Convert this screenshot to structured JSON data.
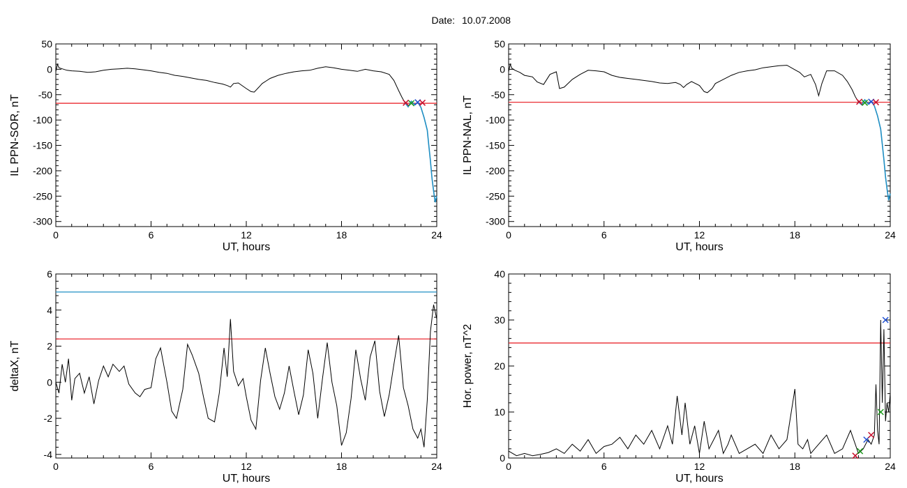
{
  "figure": {
    "date_label": "Date:",
    "date_value": "10.07.2008"
  },
  "colors": {
    "trace": "#000000",
    "threshold_red": "#e8151b",
    "threshold_blue": "#1f8fc4",
    "mark_red": "#c8102e",
    "mark_green": "#1a9a1a",
    "mark_blue": "#1f4fd0"
  },
  "chart_data": [
    {
      "id": "ppn-sor",
      "type": "line",
      "xlabel": "UT, hours",
      "ylabel": "IL PPN-SOR, nT",
      "xlim": [
        0,
        24
      ],
      "ylim": [
        -310,
        50
      ],
      "xticks": [
        0,
        6,
        12,
        18,
        24
      ],
      "yticks": [
        50,
        0,
        -50,
        -100,
        -150,
        -200,
        -250,
        -300
      ],
      "threshold": {
        "value": -67,
        "color": "red"
      },
      "series": [
        {
          "x": [
            0,
            0.1,
            0.2,
            0.4,
            0.7,
            1,
            1.5,
            2,
            2.5,
            3,
            3.5,
            4,
            4.5,
            5,
            5.5,
            6,
            6.5,
            7,
            7.5,
            8,
            8.5,
            9,
            9.5,
            10,
            10.5,
            10.8,
            11,
            11.2,
            11.5,
            12,
            12.3,
            12.5,
            12.8,
            13,
            13.5,
            14,
            14.5,
            15,
            15.5,
            16,
            16.5,
            17,
            17.5,
            18,
            18.5,
            19,
            19.5,
            20,
            20.5,
            21,
            21.3,
            21.6,
            21.8,
            22,
            22.2,
            22.4,
            22.6,
            22.8,
            23,
            23.2,
            23.4,
            23.5,
            23.6,
            23.7,
            23.8,
            23.9,
            24
          ],
          "y": [
            -5,
            10,
            3,
            1,
            -2,
            -3,
            -4,
            -6,
            -5,
            -2,
            0,
            1,
            2,
            1,
            -1,
            -3,
            -6,
            -8,
            -12,
            -14,
            -17,
            -20,
            -22,
            -26,
            -29,
            -32,
            -35,
            -28,
            -27,
            -38,
            -44,
            -45,
            -35,
            -28,
            -18,
            -12,
            -8,
            -5,
            -3,
            -2,
            2,
            5,
            3,
            0,
            -2,
            -4,
            0,
            -3,
            -5,
            -10,
            -22,
            -42,
            -55,
            -66,
            -74,
            -63,
            -70,
            -65,
            -75,
            -95,
            -120,
            -150,
            -180,
            -215,
            -240,
            -262,
            -250
          ]
        }
      ],
      "markers": {
        "x": [
          22.05,
          22.4,
          22.8,
          23.1
        ],
        "y": [
          -66,
          -67,
          -65,
          -66
        ]
      }
    },
    {
      "id": "ppn-nal",
      "type": "line",
      "xlabel": "UT, hours",
      "ylabel": "IL PPN-NAL, nT",
      "xlim": [
        0,
        24
      ],
      "ylim": [
        -310,
        50
      ],
      "xticks": [
        0,
        6,
        12,
        18,
        24
      ],
      "yticks": [
        50,
        0,
        -50,
        -100,
        -150,
        -200,
        -250,
        -300
      ],
      "threshold": {
        "value": -65,
        "color": "red"
      },
      "series": [
        {
          "x": [
            0,
            0.1,
            0.2,
            0.4,
            0.7,
            1,
            1.5,
            1.8,
            2.2,
            2.6,
            3,
            3.2,
            3.5,
            4,
            4.5,
            5,
            5.5,
            6,
            6.5,
            7,
            7.5,
            8,
            8.5,
            9,
            9.5,
            10,
            10.5,
            10.8,
            11,
            11.2,
            11.5,
            12,
            12.3,
            12.5,
            12.8,
            13,
            13.5,
            14,
            14.5,
            15,
            15.5,
            16,
            16.5,
            17,
            17.5,
            18,
            18.3,
            18.6,
            19,
            19.3,
            19.5,
            19.7,
            20,
            20.5,
            21,
            21.3,
            21.6,
            21.8,
            22,
            22.2,
            22.4,
            22.6,
            22.8,
            23,
            23.2,
            23.4,
            23.5,
            23.6,
            23.7,
            23.8,
            23.9,
            24
          ],
          "y": [
            -5,
            10,
            2,
            -2,
            -6,
            -12,
            -15,
            -25,
            -30,
            -10,
            -5,
            -38,
            -35,
            -20,
            -10,
            -2,
            -3,
            -5,
            -12,
            -16,
            -18,
            -20,
            -22,
            -24,
            -27,
            -28,
            -26,
            -30,
            -36,
            -30,
            -24,
            -32,
            -44,
            -46,
            -38,
            -28,
            -20,
            -12,
            -6,
            -3,
            -1,
            3,
            5,
            7,
            8,
            -1,
            -6,
            -15,
            -10,
            -30,
            -52,
            -28,
            -3,
            -3,
            -12,
            -24,
            -40,
            -54,
            -64,
            -70,
            -60,
            -68,
            -63,
            -72,
            -92,
            -118,
            -148,
            -178,
            -212,
            -236,
            -258,
            -245
          ]
        }
      ],
      "markers": {
        "x": [
          22.05,
          22.4,
          22.8,
          23.1
        ],
        "y": [
          -64,
          -66,
          -64,
          -65
        ]
      }
    },
    {
      "id": "deltax",
      "type": "line",
      "xlabel": "UT, hours",
      "ylabel": "deltaX, nT",
      "xlim": [
        0,
        24
      ],
      "ylim": [
        -4.2,
        6
      ],
      "xticks": [
        0,
        6,
        12,
        18,
        24
      ],
      "yticks": [
        6,
        4,
        2,
        0,
        -2,
        -4
      ],
      "thresholds": [
        {
          "value": 5.0,
          "color": "blue"
        },
        {
          "value": 2.4,
          "color": "red"
        }
      ],
      "series": [
        {
          "x": [
            0,
            0.2,
            0.4,
            0.6,
            0.8,
            1,
            1.2,
            1.5,
            1.8,
            2.1,
            2.4,
            2.7,
            3,
            3.3,
            3.6,
            4,
            4.3,
            4.6,
            5,
            5.3,
            5.6,
            6,
            6.3,
            6.6,
            7,
            7.3,
            7.6,
            8,
            8.3,
            8.6,
            9,
            9.3,
            9.6,
            10,
            10.3,
            10.6,
            10.8,
            11,
            11.2,
            11.5,
            11.8,
            12,
            12.3,
            12.6,
            12.9,
            13.2,
            13.5,
            13.8,
            14.1,
            14.4,
            14.7,
            15,
            15.3,
            15.6,
            15.9,
            16.2,
            16.5,
            16.8,
            17.1,
            17.4,
            17.7,
            18,
            18.3,
            18.6,
            18.9,
            19.2,
            19.5,
            19.8,
            20.1,
            20.4,
            20.7,
            21,
            21.3,
            21.6,
            21.9,
            22.2,
            22.5,
            22.8,
            23,
            23.2,
            23.4,
            23.6,
            23.8,
            24
          ],
          "y": [
            0,
            -0.6,
            1,
            0,
            1.3,
            -1,
            0.2,
            0.5,
            -0.6,
            0.3,
            -1.2,
            0.1,
            0.9,
            0.3,
            1,
            0.6,
            0.9,
            -0.1,
            -0.6,
            -0.8,
            -0.4,
            -0.3,
            1.3,
            1.9,
            0,
            -1.6,
            -2,
            -0.4,
            2.1,
            1.5,
            0.5,
            -0.8,
            -2,
            -2.2,
            -0.6,
            1.9,
            0.3,
            3.5,
            0.6,
            -0.2,
            0.2,
            -0.8,
            -2.1,
            -2.6,
            0.1,
            1.9,
            0.5,
            -0.8,
            -1.5,
            -0.6,
            0.9,
            -0.5,
            -1.8,
            -0.7,
            1.8,
            0.5,
            -2,
            0.2,
            2.2,
            0,
            -1.3,
            -3.5,
            -2.8,
            -0.9,
            1.8,
            0.2,
            -1,
            1.4,
            2.3,
            -0.5,
            -1.9,
            -0.7,
            1,
            2.6,
            -0.3,
            -1.3,
            -2.6,
            -3.1,
            -2.6,
            -3.6,
            -1,
            2.8,
            4.3,
            3.5
          ]
        }
      ]
    },
    {
      "id": "hor-power",
      "type": "line",
      "xlabel": "UT, hours",
      "ylabel": "Hor. power, nT^2",
      "xlim": [
        0,
        24
      ],
      "ylim": [
        0,
        40
      ],
      "xticks": [
        0,
        6,
        12,
        18,
        24
      ],
      "yticks": [
        40,
        30,
        20,
        10,
        0
      ],
      "threshold": {
        "value": 25,
        "color": "red"
      },
      "series": [
        {
          "x": [
            0,
            0.5,
            1,
            1.5,
            2,
            2.5,
            3,
            3.5,
            4,
            4.5,
            5,
            5.5,
            6,
            6.5,
            7,
            7.5,
            8,
            8.5,
            9,
            9.5,
            10,
            10.3,
            10.6,
            10.9,
            11.1,
            11.4,
            11.7,
            12,
            12.3,
            12.6,
            12.9,
            13.2,
            13.5,
            13.8,
            14,
            14.5,
            15,
            15.5,
            16,
            16.5,
            17,
            17.5,
            18,
            18.2,
            18.5,
            18.8,
            19,
            19.5,
            20,
            20.5,
            21,
            21.5,
            22,
            22.3,
            22.6,
            22.8,
            23,
            23.1,
            23.2,
            23.3,
            23.4,
            23.5,
            23.6,
            23.7,
            23.8,
            23.9,
            24
          ],
          "y": [
            1.5,
            0.5,
            1,
            0.5,
            0.8,
            1.2,
            2,
            1,
            3,
            1.5,
            4,
            1,
            2.5,
            3,
            4.5,
            2,
            5,
            3,
            6,
            2,
            7,
            3,
            13.5,
            5,
            12,
            3,
            7,
            1,
            8,
            2,
            4,
            6,
            1,
            3,
            5,
            1,
            2,
            3,
            1,
            5,
            2,
            4,
            15,
            3,
            2,
            4,
            1,
            3,
            5,
            1,
            2,
            6,
            1,
            2,
            4,
            3,
            5,
            16,
            6,
            3,
            30,
            12,
            28,
            8,
            12,
            10,
            14
          ]
        }
      ],
      "markers": {
        "x": [
          21.8,
          22.1,
          22.5,
          22.8,
          23.4,
          23.7
        ],
        "y": [
          0.5,
          1.5,
          4,
          5,
          10,
          30
        ]
      }
    }
  ]
}
